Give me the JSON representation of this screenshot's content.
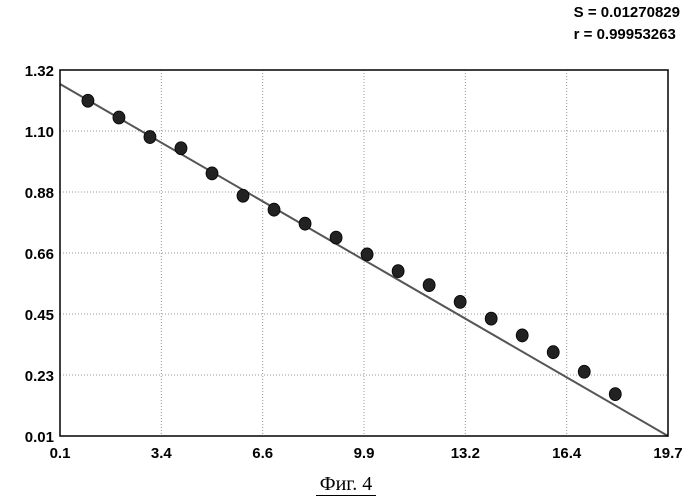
{
  "stats": {
    "s_text": "S = 0.01270829",
    "r_text": "r = 0.99953263"
  },
  "caption": "Фиг. 4",
  "chart_data": {
    "type": "scatter",
    "x_ticks": [
      "0.1",
      "3.4",
      "6.6",
      "9.9",
      "13.2",
      "16.4",
      "19.7"
    ],
    "y_ticks": [
      "0.01",
      "0.23",
      "0.45",
      "0.66",
      "0.88",
      "1.10",
      "1.32"
    ],
    "xlim": [
      0.1,
      19.7
    ],
    "ylim": [
      0.01,
      1.32
    ],
    "grid": true,
    "series": [
      {
        "kind": "points",
        "x": [
          1.0,
          2.0,
          3.0,
          4.0,
          5.0,
          6.0,
          7.0,
          8.0,
          9.0,
          10.0,
          11.0,
          12.0,
          13.0,
          14.0,
          15.0,
          16.0,
          17.0,
          18.0
        ],
        "y": [
          1.21,
          1.15,
          1.08,
          1.04,
          0.95,
          0.87,
          0.82,
          0.77,
          0.72,
          0.66,
          0.6,
          0.55,
          0.49,
          0.43,
          0.37,
          0.31,
          0.24,
          0.16
        ]
      },
      {
        "kind": "fit-line",
        "x": [
          0.1,
          19.7
        ],
        "y": [
          1.27,
          0.01
        ]
      }
    ],
    "colors": {
      "points": "#222222",
      "line": "#555555",
      "grid": "#9a9a9a",
      "frame": "#000000"
    }
  }
}
